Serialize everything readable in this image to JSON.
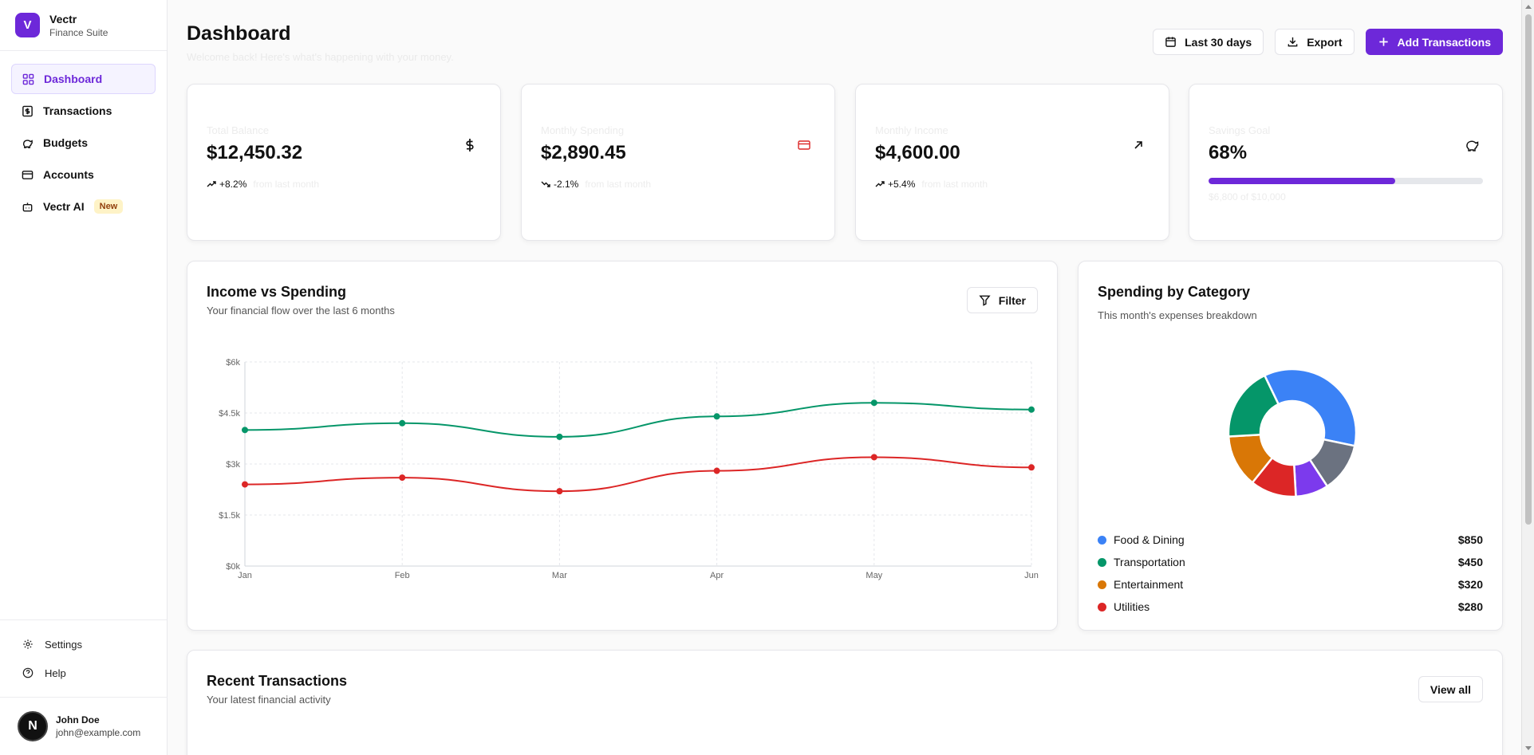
{
  "brand": {
    "logo": "V",
    "name": "Vectr",
    "subtitle": "Finance Suite"
  },
  "nav": [
    {
      "label": "Dashboard",
      "icon": "grid-icon",
      "active": true
    },
    {
      "label": "Transactions",
      "icon": "receipt-icon"
    },
    {
      "label": "Budgets",
      "icon": "piggy-bank-icon"
    },
    {
      "label": "Accounts",
      "icon": "credit-card-icon"
    },
    {
      "label": "Vectr AI",
      "icon": "bot-icon",
      "badge": "New"
    }
  ],
  "sidebar_bottom": {
    "settings": "Settings",
    "help": "Help"
  },
  "user": {
    "initial": "N",
    "name": "John Doe",
    "email": "john@example.com"
  },
  "header": {
    "title": "Dashboard",
    "subtitle": "Welcome back! Here's what's happening with your money.",
    "date_range": "Last 30 days",
    "export": "Export",
    "add": "Add Transactions"
  },
  "stats": [
    {
      "label": "Total Balance",
      "value": "$12,450.32",
      "change": "+8.2%",
      "note": "from last month",
      "icon": "dollar-icon"
    },
    {
      "label": "Monthly Spending",
      "value": "$2,890.45",
      "change": "-2.1%",
      "note": "from last month",
      "icon": "credit-card-icon"
    },
    {
      "label": "Monthly Income",
      "value": "$4,600.00",
      "change": "+5.4%",
      "note": "from last month",
      "icon": "arrow-up-right-icon"
    },
    {
      "label": "Savings Goal",
      "value": "68%",
      "progress": 0.68,
      "note": "$6,800 of $10,000",
      "icon": "piggy-bank-icon"
    }
  ],
  "income_chart": {
    "title": "Income vs Spending",
    "subtitle": "Your financial flow over the last 6 months",
    "filter": "Filter"
  },
  "chart_data": [
    {
      "type": "line",
      "categories": [
        "Jan",
        "Feb",
        "Mar",
        "Apr",
        "May",
        "Jun"
      ],
      "yticks": [
        "$0k",
        "$1.5k",
        "$3k",
        "$4.5k",
        "$6k"
      ],
      "ylim": [
        0,
        6000
      ],
      "series": [
        {
          "values": [
            4000,
            4200,
            3800,
            4400,
            4800,
            4600
          ],
          "color": "#059669"
        },
        {
          "values": [
            2400,
            2600,
            2200,
            2800,
            3200,
            2900
          ],
          "color": "#dc2626"
        }
      ],
      "grid": true
    },
    {
      "type": "pie",
      "title": "Spending by Category",
      "subtitle": "This month's expenses breakdown",
      "slices": [
        {
          "name": "Food & Dining",
          "value": 850,
          "amount": "$850",
          "color": "#3b82f6",
          "in_legend": true
        },
        {
          "name": "",
          "value": 300,
          "color": "#6b7280",
          "in_legend": false
        },
        {
          "name": "",
          "value": 200,
          "color": "#7c3aed",
          "in_legend": false
        },
        {
          "name": "Utilities",
          "value": 280,
          "amount": "$280",
          "color": "#dc2626",
          "in_legend": true
        },
        {
          "name": "Entertainment",
          "value": 320,
          "amount": "$320",
          "color": "#d97706",
          "in_legend": true
        },
        {
          "name": "Transportation",
          "value": 450,
          "amount": "$450",
          "color": "#059669",
          "in_legend": true
        }
      ]
    }
  ],
  "legend_order": [
    0,
    5,
    4,
    3
  ],
  "recent": {
    "title": "Recent Transactions",
    "subtitle": "Your latest financial activity",
    "view_all": "View all"
  }
}
